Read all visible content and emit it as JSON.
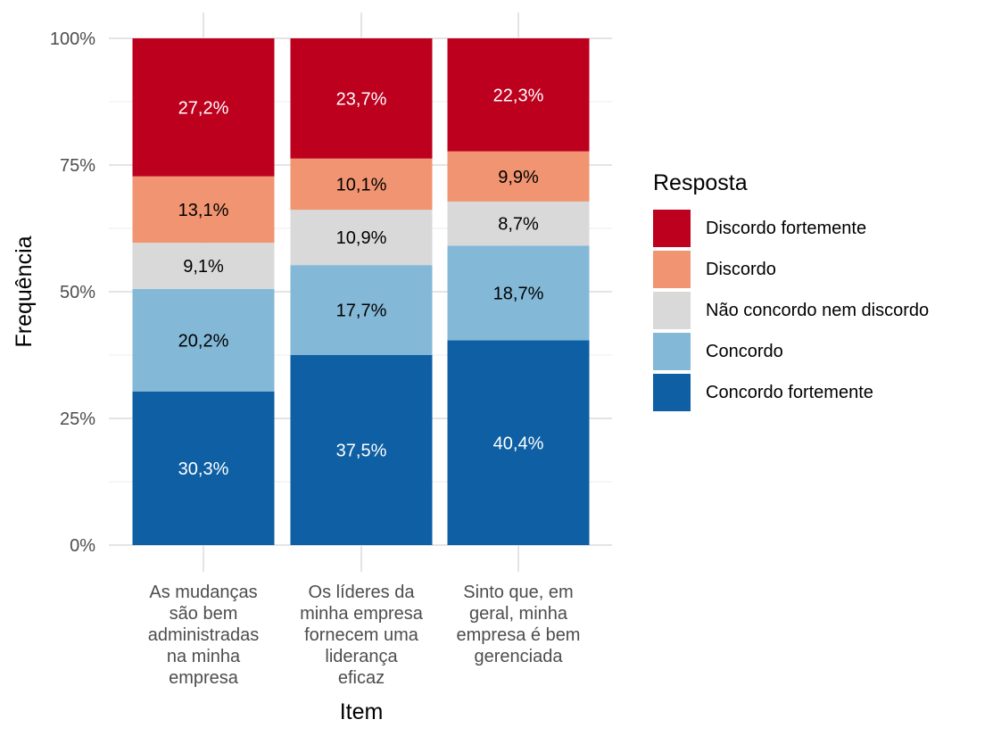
{
  "chart_data": {
    "type": "bar",
    "stacked": true,
    "percent": true,
    "xlabel": "Item",
    "ylabel": "Frequência",
    "ylim": [
      0,
      100
    ],
    "y_ticks": [
      "0%",
      "25%",
      "50%",
      "75%",
      "100%"
    ],
    "grid": true,
    "legend_position": "right",
    "legend_title": "Resposta",
    "categories": [
      [
        "As mudanças",
        "são bem",
        "administradas",
        "na minha",
        "empresa"
      ],
      [
        "Os líderes da",
        "minha empresa",
        "fornecem uma",
        "liderança",
        "eficaz"
      ],
      [
        "Sinto que, em",
        "geral, minha",
        "empresa é bem",
        "gerenciada"
      ]
    ],
    "series": [
      {
        "name": "Concordo fortemente",
        "color": "#0E5FA3",
        "label_color": "#ffffff",
        "values": [
          30.3,
          37.5,
          40.4
        ],
        "labels": [
          "30,3%",
          "37,5%",
          "40,4%"
        ]
      },
      {
        "name": "Concordo",
        "color": "#83B8D7",
        "label_color": "#000000",
        "values": [
          20.2,
          17.7,
          18.7
        ],
        "labels": [
          "20,2%",
          "17,7%",
          "18,7%"
        ]
      },
      {
        "name": "Não concordo nem discordo",
        "color": "#D9D9D9",
        "label_color": "#000000",
        "values": [
          9.1,
          10.9,
          8.7
        ],
        "labels": [
          "9,1%",
          "10,9%",
          "8,7%"
        ]
      },
      {
        "name": "Discordo",
        "color": "#F09471",
        "label_color": "#000000",
        "values": [
          13.1,
          10.1,
          9.9
        ],
        "labels": [
          "13,1%",
          "10,1%",
          "9,9%"
        ]
      },
      {
        "name": "Discordo fortemente",
        "color": "#BD001E",
        "label_color": "#ffffff",
        "values": [
          27.2,
          23.7,
          22.3
        ],
        "labels": [
          "27,2%",
          "23,7%",
          "22,3%"
        ]
      }
    ],
    "legend_order": [
      "Discordo fortemente",
      "Discordo",
      "Não concordo nem discordo",
      "Concordo",
      "Concordo fortemente"
    ]
  }
}
